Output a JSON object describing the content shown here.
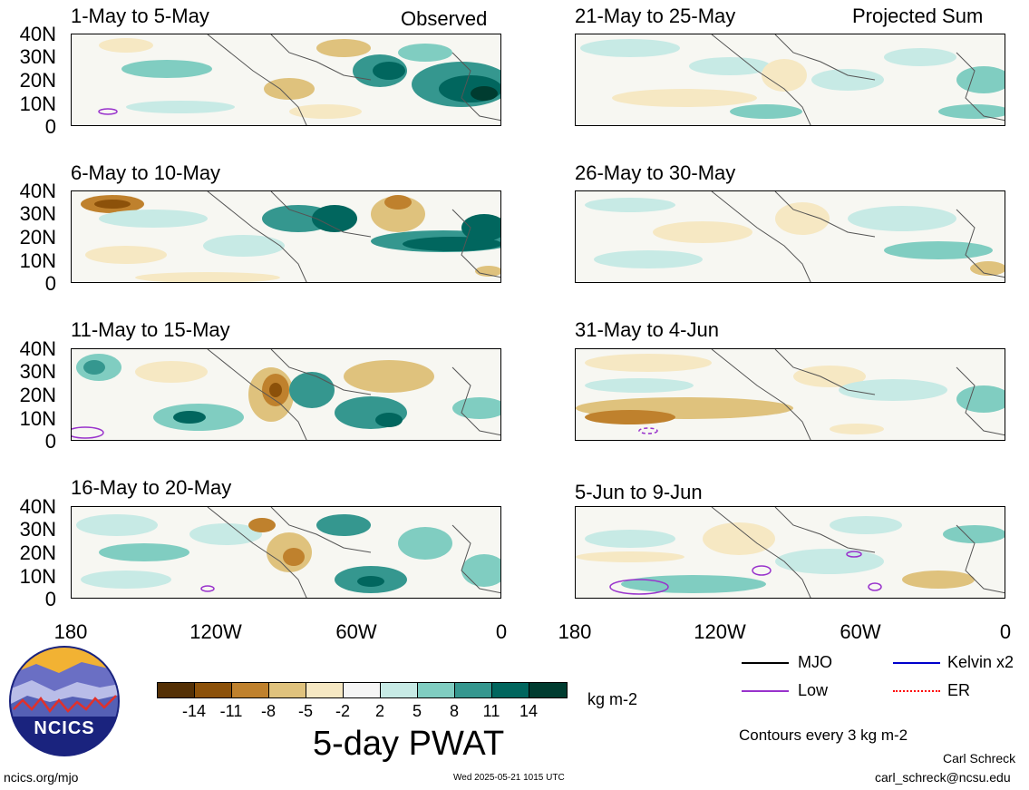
{
  "panels_left": [
    {
      "title": "1-May to 5-May",
      "tag": "Observed"
    },
    {
      "title": "6-May to 10-May",
      "tag": ""
    },
    {
      "title": "11-May to 15-May",
      "tag": ""
    },
    {
      "title": "16-May to 20-May",
      "tag": ""
    }
  ],
  "panels_right": [
    {
      "title": "21-May to 25-May",
      "tag": "Projected Sum"
    },
    {
      "title": "26-May to 30-May",
      "tag": ""
    },
    {
      "title": "31-May to 4-Jun",
      "tag": ""
    },
    {
      "title": "5-Jun to 9-Jun",
      "tag": ""
    }
  ],
  "lat_labels": [
    "40N",
    "30N",
    "20N",
    "10N",
    "0"
  ],
  "lon_labels": [
    "180",
    "120W",
    "60W",
    "0"
  ],
  "colorbar": {
    "colors": [
      "#543005",
      "#8c510a",
      "#bf812d",
      "#dfc27d",
      "#f6e8c3",
      "#f5f5f5",
      "#c7eae5",
      "#80cdc1",
      "#35978f",
      "#01665e",
      "#003c30"
    ],
    "labels": [
      "-14",
      "-11",
      "-8",
      "-5",
      "-2",
      "2",
      "5",
      "8",
      "11",
      "14"
    ],
    "units": "kg m-2"
  },
  "title": "5-day PWAT",
  "legend": [
    {
      "label": "MJO",
      "color": "#000000",
      "style": "solid"
    },
    {
      "label": "Kelvin x2",
      "color": "#0000cc",
      "style": "solid"
    },
    {
      "label": "Low",
      "color": "#9933cc",
      "style": "solid"
    },
    {
      "label": "ER",
      "color": "#ff0000",
      "style": "dotted"
    }
  ],
  "contour_note": "Contours every 3 kg m-2",
  "logo_text": "NCICS",
  "footer_left": "ncics.org/mjo",
  "footer_center": "Wed 2025-05-21 1015 UTC",
  "footer_author": "Carl Schreck",
  "footer_email": "carl_schreck@ncsu.edu"
}
